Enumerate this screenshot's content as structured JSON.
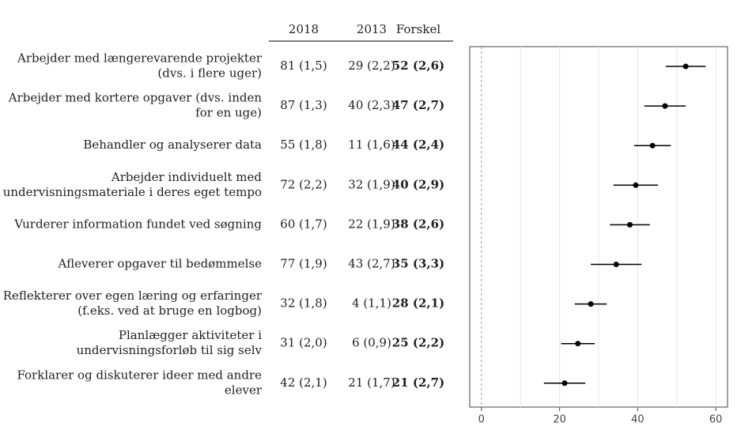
{
  "chart_data": {
    "type": "dotwhisker",
    "columns": [
      "2018",
      "2013",
      "Forskel"
    ],
    "rows": [
      {
        "label": [
          "Arbejder med længerevarende projekter",
          "(dvs. i flere uger)"
        ],
        "cells": [
          "81 (1,5)",
          "29 (2,2)",
          "52 (2,6)"
        ]
      },
      {
        "label": [
          "Arbejder med kortere opgaver (dvs. inden",
          "for en uge)"
        ],
        "cells": [
          "87 (1,3)",
          "40 (2,3)",
          "47 (2,7)"
        ]
      },
      {
        "label": [
          "Behandler og analyserer data"
        ],
        "cells": [
          "55 (1,8)",
          "11 (1,6)",
          "44 (2,4)"
        ]
      },
      {
        "label": [
          "Arbejder individuelt med",
          "undervisningsmateriale i deres eget tempo"
        ],
        "cells": [
          "72 (2,2)",
          "32 (1,9)",
          "40 (2,9)"
        ]
      },
      {
        "label": [
          "Vurderer information fundet ved søgning"
        ],
        "cells": [
          "60 (1,7)",
          "22 (1,9)",
          "38 (2,6)"
        ]
      },
      {
        "label": [
          "Afleverer opgaver til bedømmelse"
        ],
        "cells": [
          "77 (1,9)",
          "43 (2,7)",
          "35 (3,3)"
        ]
      },
      {
        "label": [
          "Reflekterer over egen læring og erfaringer",
          "(f.eks. ved at bruge en logbog)"
        ],
        "cells": [
          "32 (1,8)",
          "4 (1,1)",
          "28 (2,1)"
        ]
      },
      {
        "label": [
          "Planlægger aktiviteter i",
          "undervisningsforløb til sig selv"
        ],
        "cells": [
          "31 (2,0)",
          "6 (0,9)",
          "25 (2,2)"
        ]
      },
      {
        "label": [
          "Forklarer og diskuterer ideer med andre",
          "elever"
        ],
        "cells": [
          "42 (2,1)",
          "21 (1,7)",
          "21 (2,7)"
        ]
      }
    ],
    "values": [
      52.3,
      47,
      43.8,
      39.5,
      38,
      34.5,
      28,
      24.7,
      21.3
    ],
    "errors": [
      5.1,
      5.3,
      4.7,
      5.7,
      5.1,
      6.5,
      4.1,
      4.3,
      5.3
    ],
    "color": "#000000",
    "xlim": [
      -3,
      63
    ],
    "xticks": [
      0,
      20,
      40,
      60
    ],
    "xgrid": [
      10,
      20,
      30,
      40,
      50,
      60
    ]
  }
}
